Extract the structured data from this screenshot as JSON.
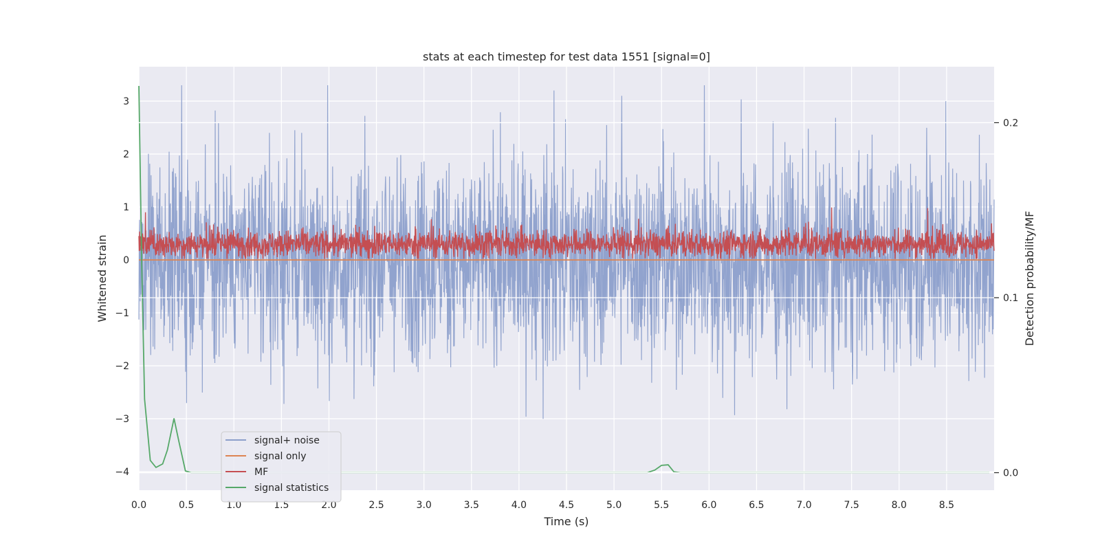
{
  "chart_data": {
    "type": "line",
    "title": "stats at each timestep for test data 1551 [signal=0]",
    "xlabel": "Time (s)",
    "ylabel": "Whitened strain",
    "y2label": "Detection probability/MF",
    "xlim": [
      0,
      9.0
    ],
    "ylim": [
      -4.35,
      3.65
    ],
    "y2lim": [
      -0.01,
      0.232
    ],
    "x_ticks": [
      0.0,
      0.5,
      1.0,
      1.5,
      2.0,
      2.5,
      3.0,
      3.5,
      4.0,
      4.5,
      5.0,
      5.5,
      6.0,
      6.5,
      7.0,
      7.5,
      8.0,
      8.5
    ],
    "x_tick_labels": [
      "0.0",
      "0.5",
      "1.0",
      "1.5",
      "2.0",
      "2.5",
      "3.0",
      "3.5",
      "4.0",
      "4.5",
      "5.0",
      "5.5",
      "6.0",
      "6.5",
      "7.0",
      "7.5",
      "8.0",
      "8.5"
    ],
    "y_ticks": [
      3,
      2,
      1,
      0,
      -1,
      -2,
      -3,
      -4
    ],
    "y_tick_labels": [
      "3",
      "2",
      "1",
      "0",
      "−1",
      "−2",
      "−3",
      "−4"
    ],
    "y2_ticks": [
      0.2,
      0.1,
      0.0
    ],
    "y2_tick_labels": [
      "0.2",
      "0.1",
      "0.0"
    ],
    "grid": true,
    "legend_position": "lower-left",
    "background": "#eaeaf2",
    "series": [
      {
        "name": "signal+ noise",
        "axis": "left",
        "color": "#8c9fcb",
        "style": "noise",
        "amplitude_range": [
          -3.3,
          3.3
        ],
        "peaks_x": [
          0.45,
          4.37,
          5.08,
          8.49
        ],
        "peaks_y": [
          3.3,
          3.2,
          3.1,
          3.0
        ]
      },
      {
        "name": "signal only",
        "axis": "left",
        "color": "#dd8452",
        "x": [
          0.0,
          9.0
        ],
        "y": [
          0.0,
          0.0
        ]
      },
      {
        "name": "MF",
        "axis": "left",
        "color": "#c44e52",
        "style": "noise",
        "amplitude_range": [
          0.0,
          1.0
        ],
        "x": [
          0.0,
          0.07,
          7.29,
          8.3
        ],
        "y": [
          0.45,
          0.9,
          0.99,
          0.98
        ]
      },
      {
        "name": "signal statistics",
        "axis": "right",
        "color": "#55a868",
        "x": [
          0.0,
          0.03,
          0.06,
          0.12,
          0.18,
          0.25,
          0.3,
          0.37,
          0.42,
          0.49,
          0.55,
          0.6,
          1.0,
          2.0,
          3.0,
          4.0,
          5.0,
          5.35,
          5.43,
          5.5,
          5.57,
          5.63,
          5.7,
          6.0,
          7.0,
          8.0,
          8.95
        ],
        "y": [
          0.221,
          0.12,
          0.042,
          0.007,
          0.003,
          0.005,
          0.013,
          0.031,
          0.018,
          0.001,
          0.0,
          0.0,
          0.0,
          0.0,
          0.0,
          0.0,
          0.0,
          0.0,
          0.0015,
          0.0042,
          0.0045,
          0.0005,
          0.0,
          0.0,
          0.0,
          0.0,
          0.0
        ]
      }
    ]
  }
}
